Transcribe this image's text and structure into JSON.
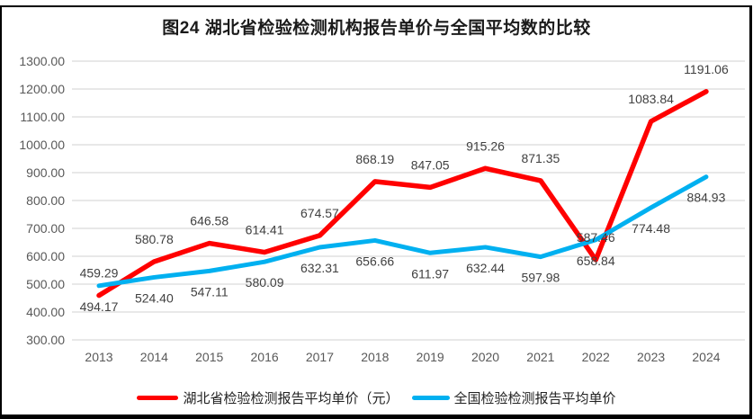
{
  "chart_data": {
    "type": "line",
    "title": "图24 湖北省检验检测机构报告单价与全国平均数的比较",
    "categories": [
      "2013",
      "2014",
      "2015",
      "2016",
      "2017",
      "2018",
      "2019",
      "2020",
      "2021",
      "2022",
      "2023",
      "2024"
    ],
    "series": [
      {
        "name": "湖北省检验检测报告平均单价（元）",
        "color": "#FF0000",
        "stroke_width": 5.5,
        "label_position": "above",
        "values": [
          459.29,
          580.78,
          646.58,
          614.41,
          674.57,
          868.19,
          847.05,
          915.26,
          871.35,
          587.46,
          1083.84,
          1191.06
        ]
      },
      {
        "name": "全国检验检测报告平均单价",
        "color": "#00B0F0",
        "stroke_width": 5,
        "label_position": "below",
        "values": [
          494.17,
          524.4,
          547.11,
          580.09,
          632.31,
          656.66,
          611.97,
          632.44,
          597.98,
          658.84,
          774.48,
          884.93
        ]
      }
    ],
    "ylim": [
      300,
      1300
    ],
    "ytick_step": 100,
    "ytick_decimals": 2,
    "value_label_decimals": 2,
    "grid": true,
    "legend_position": "bottom",
    "colors": {
      "grid": "#D9D9D9",
      "axis_text": "#595959",
      "data_label": "#404040"
    }
  }
}
